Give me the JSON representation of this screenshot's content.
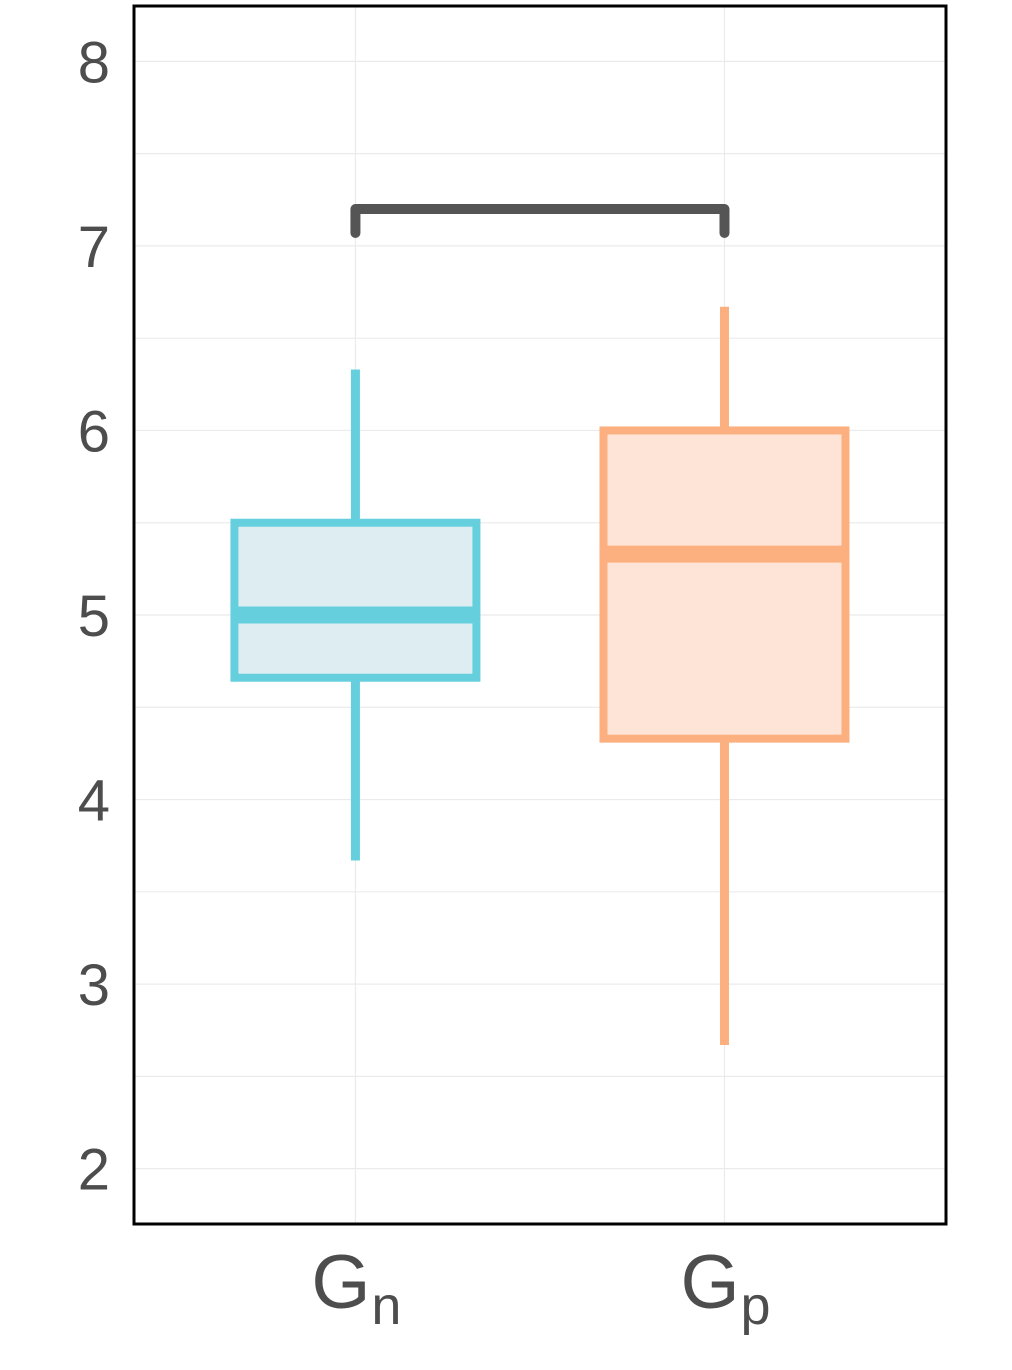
{
  "chart_data": {
    "type": "boxplot",
    "ylim": [
      1.7,
      8.3
    ],
    "yticks": [
      "2",
      "3",
      "4",
      "5",
      "6",
      "7",
      "8"
    ],
    "grid": true,
    "categories": [
      {
        "label": "G",
        "subscript": "n",
        "color": "#66cfde",
        "fill": "#deedf1",
        "whisker_low": 3.67,
        "q1": 4.66,
        "median": 5.0,
        "q3": 5.5,
        "whisker_high": 6.33
      },
      {
        "label": "G",
        "subscript": "p",
        "color": "#fdb07f",
        "fill": "#fee4d7",
        "whisker_low": 2.67,
        "q1": 4.33,
        "median": 5.33,
        "q3": 6.0,
        "whisker_high": 6.67
      }
    ],
    "bracket": {
      "from": 0,
      "to": 1,
      "y": 7.2,
      "color": "#555555"
    }
  }
}
